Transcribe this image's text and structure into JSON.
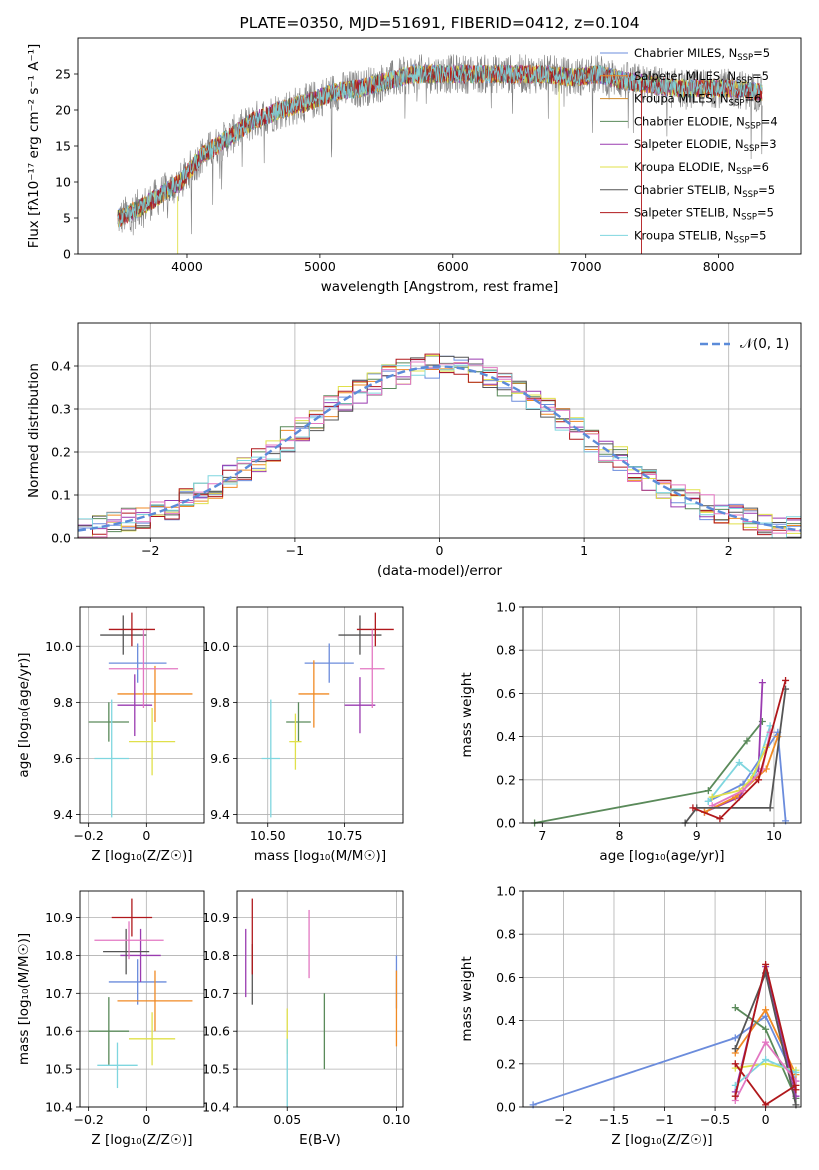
{
  "chart_data": [
    {
      "type": "line",
      "title": "PLATE=0350, MJD=51691, FIBERID=0412, z=0.104",
      "xlabel": "wavelength [Angstrom, rest frame]",
      "ylabel": "Flux [fλ10⁻¹⁷ erg cm⁻² s⁻¹ A⁻¹]",
      "xlim": [
        3180,
        8620
      ],
      "ylim": [
        0,
        30
      ],
      "xticks": [
        4000,
        5000,
        6000,
        7000,
        8000
      ],
      "yticks": [
        0,
        5,
        10,
        15,
        20,
        25
      ],
      "legend_position": "top-right",
      "data_color": "#808080",
      "data_spectrum": {
        "x": [
          3500,
          3700,
          3950,
          4100,
          4300,
          4500,
          4700,
          4900,
          5100,
          5300,
          5500,
          5700,
          5900,
          6100,
          6300,
          6500,
          6700,
          6900,
          7100,
          7300,
          7500,
          7700,
          7900,
          8100,
          8300
        ],
        "y": [
          5.0,
          7.0,
          10.0,
          13.5,
          16.0,
          18.5,
          20.0,
          21.0,
          22.5,
          23.0,
          24.0,
          25.0,
          25.0,
          25.0,
          25.0,
          25.0,
          25.0,
          24.5,
          25.0,
          24.0,
          23.5,
          23.0,
          23.0,
          23.0,
          22.5
        ]
      },
      "series": [
        {
          "name": "Chabrier MILES, N_SSP=5",
          "legend": "Chabrier MILES, N",
          "sub": "SSP",
          "suffix": "=5",
          "color": "#6b8cdc"
        },
        {
          "name": "Salpeter MILES, N_SSP=5",
          "legend": "Salpeter MILES, N",
          "sub": "SSP",
          "suffix": "=5",
          "color": "#f08a24"
        },
        {
          "name": "Kroupa MILES, N_SSP=6",
          "legend": "Kroupa MILES, N",
          "sub": "SSP",
          "suffix": "=6",
          "color": "#d08a2a"
        },
        {
          "name": "Chabrier ELODIE, N_SSP=4",
          "legend": "Chabrier ELODIE, N",
          "sub": "SSP",
          "suffix": "=4",
          "color": "#5a8a5a"
        },
        {
          "name": "Salpeter ELODIE, N_SSP=3",
          "legend": "Salpeter ELODIE, N",
          "sub": "SSP",
          "suffix": "=3",
          "color": "#9a3bb0"
        },
        {
          "name": "Kroupa ELODIE, N_SSP=6",
          "legend": "Kroupa ELODIE, N",
          "sub": "SSP",
          "suffix": "=6",
          "color": "#e0e04a"
        },
        {
          "name": "Chabrier STELIB, N_SSP=5",
          "legend": "Chabrier STELIB, N",
          "sub": "SSP",
          "suffix": "=5",
          "color": "#555555"
        },
        {
          "name": "Salpeter STELIB, N_SSP=5",
          "legend": "Salpeter STELIB, N",
          "sub": "SSP",
          "suffix": "=5",
          "color": "#b0181c"
        },
        {
          "name": "Kroupa STELIB, N_SSP=5",
          "legend": "Kroupa STELIB, N",
          "sub": "SSP",
          "suffix": "=5",
          "color": "#7fd6df"
        }
      ]
    },
    {
      "type": "histogram",
      "xlabel": "(data-model)/error",
      "ylabel": "Normed distribution",
      "xlim": [
        -2.5,
        2.5
      ],
      "ylim": [
        0,
        0.5
      ],
      "xticks": [
        -2,
        -1,
        0,
        1,
        2
      ],
      "yticks": [
        0.0,
        0.1,
        0.2,
        0.3,
        0.4
      ],
      "grid": true,
      "legend_position": "top-right",
      "reference_curve": {
        "name": "𝒩(0, 1)",
        "mean": 0,
        "sigma": 1,
        "color": "#5b8bd9",
        "style": "dashed"
      },
      "bin_width": 0.1,
      "hist_colors": [
        "#6b8cdc",
        "#f08a24",
        "#5a8a5a",
        "#9a3bb0",
        "#e0e04a",
        "#555555",
        "#b0181c",
        "#7fd6df",
        "#e377c2"
      ]
    },
    {
      "type": "scatter",
      "xlabel": "Z [log₁₀(Z/Z☉)]",
      "ylabel": "age  [log₁₀(age/yr)]",
      "xlim": [
        -0.23,
        0.2
      ],
      "ylim": [
        9.37,
        10.14
      ],
      "xticks": [
        -0.2,
        0.0
      ],
      "yticks": [
        9.4,
        9.6,
        9.8,
        10.0
      ],
      "points": [
        {
          "x": -0.03,
          "y": 9.94,
          "xerr": 0.1,
          "yerr": 0.07,
          "color": "#6b8cdc"
        },
        {
          "x": 0.03,
          "y": 9.83,
          "xerr": 0.13,
          "yerr": 0.1,
          "color": "#f08a24"
        },
        {
          "x": -0.13,
          "y": 9.73,
          "xerr": 0.07,
          "yerr": 0.07,
          "color": "#5a8a5a"
        },
        {
          "x": -0.04,
          "y": 9.79,
          "xerr": 0.06,
          "yerr": 0.11,
          "color": "#9a3bb0"
        },
        {
          "x": 0.02,
          "y": 9.66,
          "xerr": 0.08,
          "yerr": 0.12,
          "color": "#e0e04a"
        },
        {
          "x": -0.08,
          "y": 10.04,
          "xerr": 0.08,
          "yerr": 0.07,
          "color": "#555555"
        },
        {
          "x": -0.05,
          "y": 10.06,
          "xerr": 0.08,
          "yerr": 0.06,
          "color": "#b0181c"
        },
        {
          "x": -0.12,
          "y": 9.6,
          "xerr": 0.06,
          "yerr": 0.21,
          "color": "#7fd6df"
        },
        {
          "x": -0.01,
          "y": 9.92,
          "xerr": 0.12,
          "yerr": 0.14,
          "color": "#e377c2"
        }
      ]
    },
    {
      "type": "scatter",
      "xlabel": "mass [log₁₀(M/M☉)]",
      "ylabel": "",
      "xlim": [
        10.4,
        10.94
      ],
      "ylim": [
        9.37,
        10.14
      ],
      "xticks": [
        10.5,
        10.75
      ],
      "xtick_labels": [
        "10.50",
        "10.75"
      ],
      "yticks": [
        9.4,
        9.6,
        9.8,
        10.0
      ],
      "points": [
        {
          "x": 10.7,
          "y": 9.94,
          "xerr": 0.08,
          "yerr": 0.07,
          "color": "#6b8cdc"
        },
        {
          "x": 10.65,
          "y": 9.83,
          "xerr": 0.05,
          "yerr": 0.12,
          "color": "#f08a24"
        },
        {
          "x": 10.6,
          "y": 9.73,
          "xerr": 0.04,
          "yerr": 0.07,
          "color": "#5a8a5a"
        },
        {
          "x": 10.8,
          "y": 9.79,
          "xerr": 0.05,
          "yerr": 0.1,
          "color": "#9a3bb0"
        },
        {
          "x": 10.59,
          "y": 9.66,
          "xerr": 0.02,
          "yerr": 0.1,
          "color": "#e0e04a"
        },
        {
          "x": 10.8,
          "y": 10.04,
          "xerr": 0.07,
          "yerr": 0.07,
          "color": "#555555"
        },
        {
          "x": 10.85,
          "y": 10.06,
          "xerr": 0.06,
          "yerr": 0.06,
          "color": "#b0181c"
        },
        {
          "x": 10.51,
          "y": 9.6,
          "xerr": 0.03,
          "yerr": 0.21,
          "color": "#7fd6df"
        },
        {
          "x": 10.84,
          "y": 9.92,
          "xerr": 0.04,
          "yerr": 0.14,
          "color": "#e377c2"
        }
      ]
    },
    {
      "type": "line",
      "xlabel": "age  [log₁₀(age/yr)]",
      "ylabel": "mass weight",
      "xlim": [
        6.75,
        10.35
      ],
      "ylim": [
        0,
        1
      ],
      "xticks": [
        7,
        8,
        9,
        10
      ],
      "yticks": [
        0.0,
        0.2,
        0.4,
        0.6,
        0.8,
        1.0
      ],
      "grid": true,
      "series": [
        {
          "color": "#5a8a5a",
          "x": [
            6.9,
            9.15,
            9.65,
            9.85
          ],
          "y": [
            0.0,
            0.15,
            0.38,
            0.47
          ]
        },
        {
          "color": "#9a3bb0",
          "x": [
            9.1,
            9.55,
            9.8,
            9.85
          ],
          "y": [
            0.05,
            0.12,
            0.25,
            0.65
          ]
        },
        {
          "color": "#6b8cdc",
          "x": [
            9.15,
            9.6,
            10.05,
            10.15
          ],
          "y": [
            0.1,
            0.18,
            0.42,
            0.01
          ]
        },
        {
          "color": "#f08a24",
          "x": [
            9.1,
            9.5,
            9.9,
            10.05
          ],
          "y": [
            0.05,
            0.12,
            0.25,
            0.4
          ]
        },
        {
          "color": "#7fd6df",
          "x": [
            9.15,
            9.55,
            9.75,
            9.95
          ],
          "y": [
            0.1,
            0.28,
            0.22,
            0.45
          ]
        },
        {
          "color": "#e0e04a",
          "x": [
            9.2,
            9.55,
            9.7,
            9.9
          ],
          "y": [
            0.12,
            0.15,
            0.2,
            0.35
          ]
        },
        {
          "color": "#e377c2",
          "x": [
            9.2,
            9.6,
            9.85,
            9.95
          ],
          "y": [
            0.08,
            0.15,
            0.25,
            0.42
          ]
        },
        {
          "color": "#555555",
          "x": [
            8.85,
            9.0,
            9.95,
            10.15
          ],
          "y": [
            0.0,
            0.07,
            0.07,
            0.62
          ]
        },
        {
          "color": "#b0181c",
          "x": [
            8.95,
            9.3,
            9.8,
            10.15
          ],
          "y": [
            0.07,
            0.02,
            0.2,
            0.66
          ]
        }
      ]
    },
    {
      "type": "scatter",
      "xlabel": "Z [log₁₀(Z/Z☉)]",
      "ylabel": "mass [log₁₀(M/M☉)]",
      "xlim": [
        -0.23,
        0.2
      ],
      "ylim": [
        10.4,
        10.97
      ],
      "xticks": [
        -0.2,
        0.0
      ],
      "yticks": [
        10.4,
        10.5,
        10.6,
        10.7,
        10.8,
        10.9
      ],
      "points": [
        {
          "x": -0.03,
          "y": 10.73,
          "xerr": 0.1,
          "yerr": 0.06,
          "color": "#6b8cdc"
        },
        {
          "x": 0.03,
          "y": 10.68,
          "xerr": 0.13,
          "yerr": 0.08,
          "color": "#f08a24"
        },
        {
          "x": -0.13,
          "y": 10.6,
          "xerr": 0.07,
          "yerr": 0.09,
          "color": "#5a8a5a"
        },
        {
          "x": -0.02,
          "y": 10.8,
          "xerr": 0.07,
          "yerr": 0.07,
          "color": "#9a3bb0"
        },
        {
          "x": 0.02,
          "y": 10.58,
          "xerr": 0.08,
          "yerr": 0.07,
          "color": "#e0e04a"
        },
        {
          "x": -0.07,
          "y": 10.81,
          "xerr": 0.08,
          "yerr": 0.06,
          "color": "#555555"
        },
        {
          "x": -0.05,
          "y": 10.9,
          "xerr": 0.07,
          "yerr": 0.05,
          "color": "#b0181c"
        },
        {
          "x": -0.1,
          "y": 10.51,
          "xerr": 0.07,
          "yerr": 0.06,
          "color": "#7fd6df"
        },
        {
          "x": -0.06,
          "y": 10.84,
          "xerr": 0.12,
          "yerr": 0.05,
          "color": "#e377c2"
        }
      ]
    },
    {
      "type": "scatter",
      "xlabel": "E(B-V)",
      "ylabel": "",
      "xlim": [
        0.027,
        0.103
      ],
      "ylim": [
        10.4,
        10.97
      ],
      "xticks": [
        0.05,
        0.1
      ],
      "xtick_labels": [
        "0.05",
        "0.10"
      ],
      "yticks": [
        10.4,
        10.5,
        10.6,
        10.7,
        10.8,
        10.9
      ],
      "points": [
        {
          "x": 0.1,
          "y": 10.73,
          "yerr": 0.07,
          "color": "#6b8cdc"
        },
        {
          "x": 0.1,
          "y": 10.66,
          "yerr": 0.1,
          "color": "#f08a24"
        },
        {
          "x": 0.067,
          "y": 10.6,
          "yerr": 0.1,
          "color": "#5a8a5a"
        },
        {
          "x": 0.031,
          "y": 10.78,
          "yerr": 0.09,
          "color": "#9a3bb0"
        },
        {
          "x": 0.05,
          "y": 10.6,
          "yerr": 0.06,
          "color": "#e0e04a"
        },
        {
          "x": 0.034,
          "y": 10.75,
          "yerr": 0.08,
          "color": "#555555"
        },
        {
          "x": 0.034,
          "y": 10.85,
          "yerr": 0.1,
          "color": "#b0181c"
        },
        {
          "x": 0.05,
          "y": 10.49,
          "yerr": 0.09,
          "color": "#7fd6df"
        },
        {
          "x": 0.06,
          "y": 10.83,
          "yerr": 0.09,
          "color": "#e377c2"
        }
      ]
    },
    {
      "type": "line",
      "xlabel": "Z [log₁₀(Z/Z☉)]",
      "ylabel": "mass weight",
      "xlim": [
        -2.4,
        0.35
      ],
      "ylim": [
        0,
        1
      ],
      "xticks": [
        -2.0,
        -1.5,
        -1.0,
        -0.5,
        0.0
      ],
      "yticks": [
        0.0,
        0.2,
        0.4,
        0.6,
        0.8,
        1.0
      ],
      "grid": true,
      "series": [
        {
          "color": "#6b8cdc",
          "x": [
            -2.3,
            -0.3,
            0.0,
            0.3
          ],
          "y": [
            0.01,
            0.32,
            0.42,
            0.12
          ]
        },
        {
          "color": "#f08a24",
          "x": [
            -0.3,
            0.0,
            0.3
          ],
          "y": [
            0.25,
            0.45,
            0.15
          ]
        },
        {
          "color": "#5a8a5a",
          "x": [
            -0.3,
            0.0,
            0.3
          ],
          "y": [
            0.46,
            0.36,
            0.04
          ]
        },
        {
          "color": "#9a3bb0",
          "x": [
            -0.3,
            0.0,
            0.3
          ],
          "y": [
            0.07,
            0.65,
            0.05
          ]
        },
        {
          "color": "#e0e04a",
          "x": [
            -0.3,
            0.0,
            0.3
          ],
          "y": [
            0.18,
            0.2,
            0.17
          ]
        },
        {
          "color": "#555555",
          "x": [
            -0.3,
            0.0,
            0.3
          ],
          "y": [
            0.27,
            0.62,
            0.01
          ]
        },
        {
          "color": "#b0181c",
          "x": [
            -0.3,
            0.0,
            0.3
          ],
          "y": [
            0.2,
            0.01,
            0.1
          ]
        },
        {
          "color": "#7fd6df",
          "x": [
            -0.3,
            0.0,
            0.3
          ],
          "y": [
            0.1,
            0.22,
            0.16
          ]
        },
        {
          "color": "#e377c2",
          "x": [
            -0.3,
            0.0,
            0.3
          ],
          "y": [
            0.03,
            0.3,
            0.12
          ]
        },
        {
          "color": "#b0181c",
          "x": [
            -0.3,
            0.0,
            0.3
          ],
          "y": [
            0.05,
            0.66,
            0.08
          ]
        }
      ]
    }
  ]
}
